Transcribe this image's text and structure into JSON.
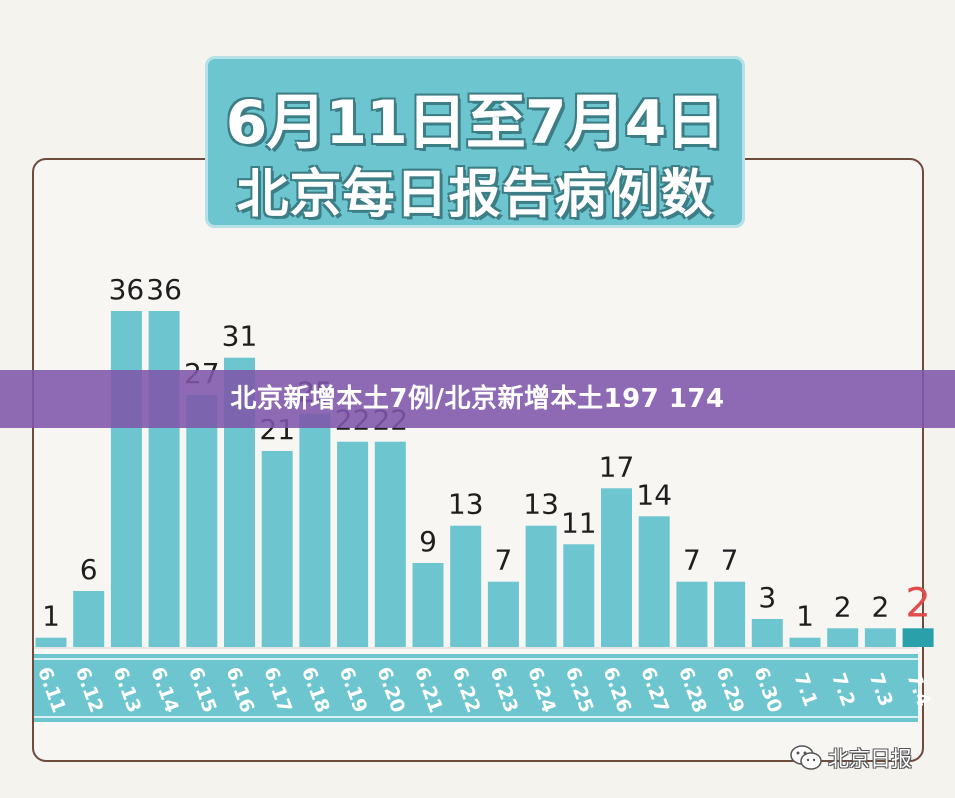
{
  "banner": {
    "text": "北京新增本土7例/北京新增本土197 174"
  },
  "watermark": {
    "text": "北京日报",
    "icon": "wechat-icon"
  },
  "colors": {
    "bar": "#6cc5cf",
    "bar_last": "#2aa0aa",
    "label_last": "#e14b4b",
    "axis_band": "#6cc5cf",
    "title_box": "#6cc5cf",
    "frame_border": "#6e4b3c",
    "banner": "#7e56aa"
  },
  "chart_data": {
    "type": "bar",
    "title": "6月11日至7月4日\n北京每日报告病例数",
    "title_lines": [
      "6月11日至7月4日",
      "北京每日报告病例数"
    ],
    "xlabel": "",
    "ylabel": "",
    "grid": false,
    "legend": "none",
    "ylim": [
      0,
      36
    ],
    "categories": [
      "6.11",
      "6.12",
      "6.13",
      "6.14",
      "6.15",
      "6.16",
      "6.17",
      "6.18",
      "6.19",
      "6.20",
      "6.21",
      "6.22",
      "6.23",
      "6.24",
      "6.25",
      "6.26",
      "6.27",
      "6.28",
      "6.29",
      "6.30",
      "7.1",
      "7.2",
      "7.3",
      "7.4"
    ],
    "values": [
      1,
      6,
      36,
      36,
      27,
      31,
      21,
      25,
      22,
      22,
      9,
      13,
      7,
      13,
      11,
      17,
      14,
      7,
      7,
      3,
      1,
      2,
      2,
      2
    ],
    "data_labels": [
      "1",
      "6",
      "36",
      "36",
      "27",
      "31",
      "21",
      "25",
      "22",
      "22",
      "9",
      "13",
      "7",
      "13",
      "11",
      "17",
      "14",
      "7",
      "7",
      "3",
      "1",
      "2",
      "2",
      "2"
    ]
  }
}
